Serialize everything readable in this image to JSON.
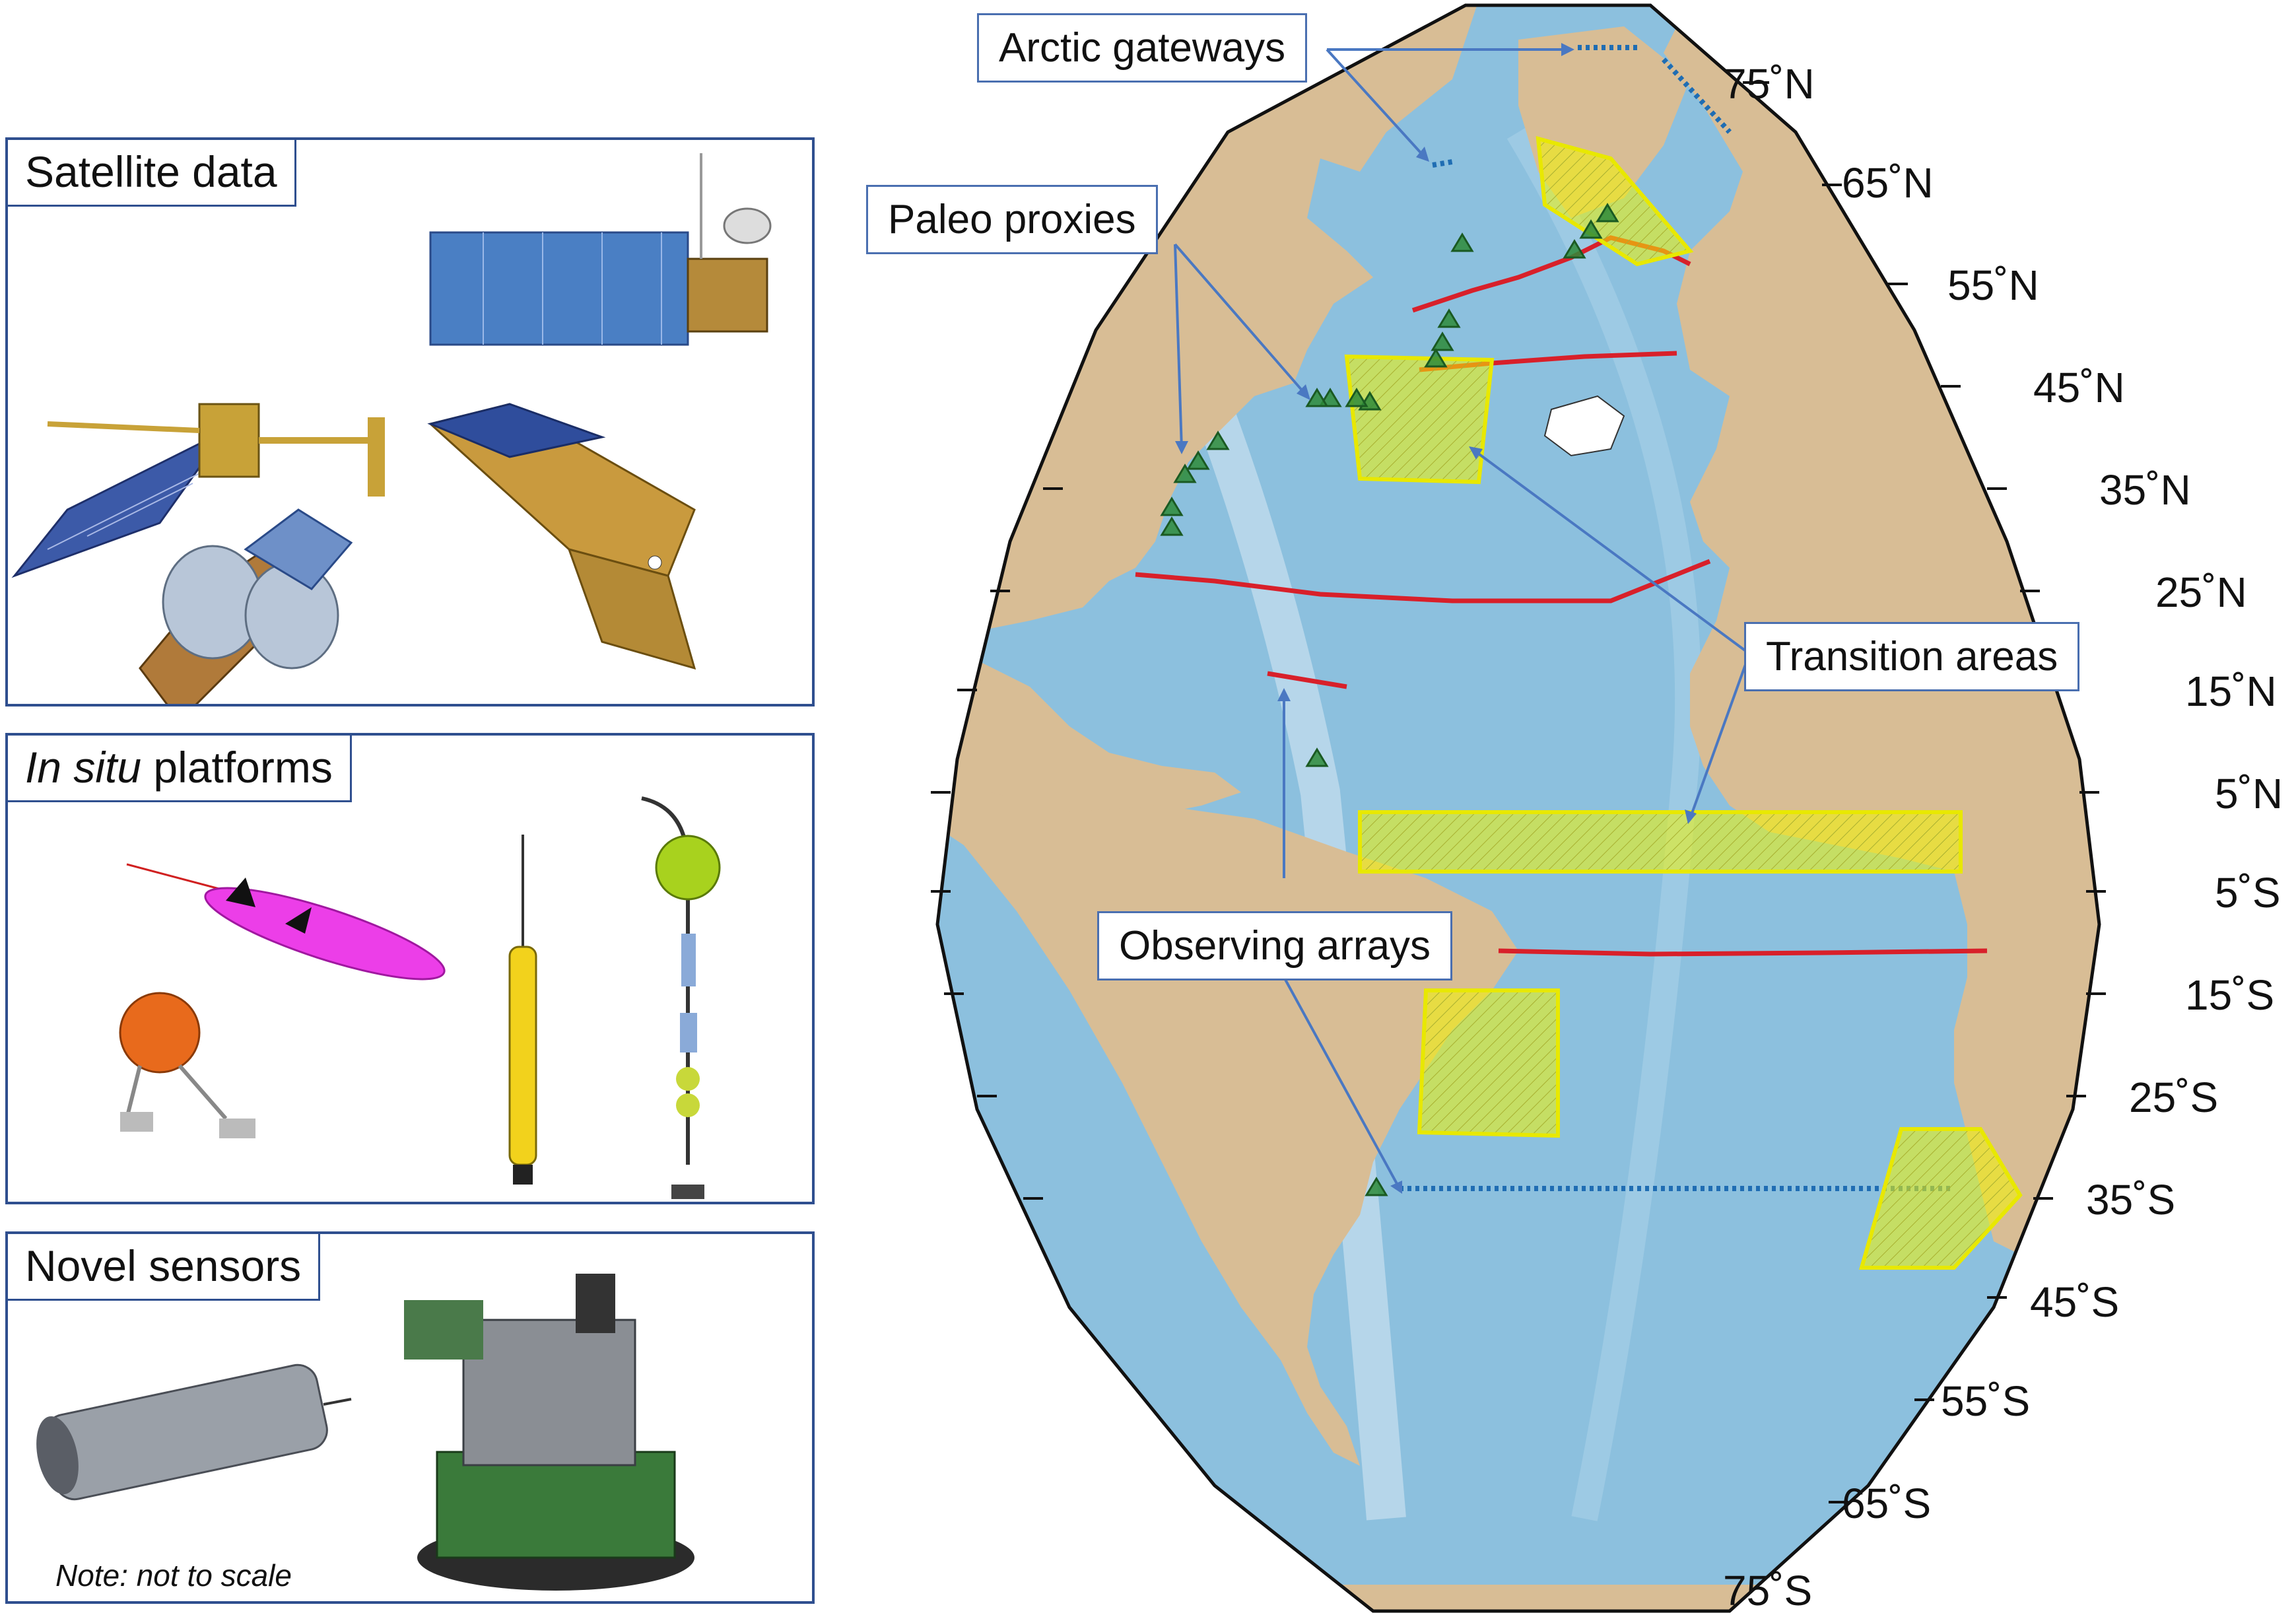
{
  "panels": {
    "satellite": {
      "label": "Satellite data"
    },
    "insitu": {
      "label_italic": "In situ",
      "label_rest": " platforms"
    },
    "sensors": {
      "label": "Novel sensors",
      "note": "Note: not to scale"
    }
  },
  "map": {
    "callouts": {
      "arctic": "Arctic gateways",
      "paleo": "Paleo proxies",
      "transition": "Transition areas",
      "observing": "Observing arrays"
    },
    "latitude_labels": [
      "75˚N",
      "65˚N",
      "55˚N",
      "45˚N",
      "35˚N",
      "25˚N",
      "15˚N",
      "5˚N",
      "5˚S",
      "15˚S",
      "25˚S",
      "35˚S",
      "45˚S",
      "55˚S",
      "65˚S",
      "75˚S"
    ],
    "colors": {
      "ocean": "#8cc0de",
      "deep_ocean": "#74add6",
      "land": "#d8bd95",
      "shelf": "#dcebf4",
      "red_line": "#d8202a",
      "gateway_dotted": "#1f6db3",
      "transition_area": "#f4f500",
      "paleo_marker": "#2e8b3a",
      "arrow": "#4a78c2"
    }
  }
}
